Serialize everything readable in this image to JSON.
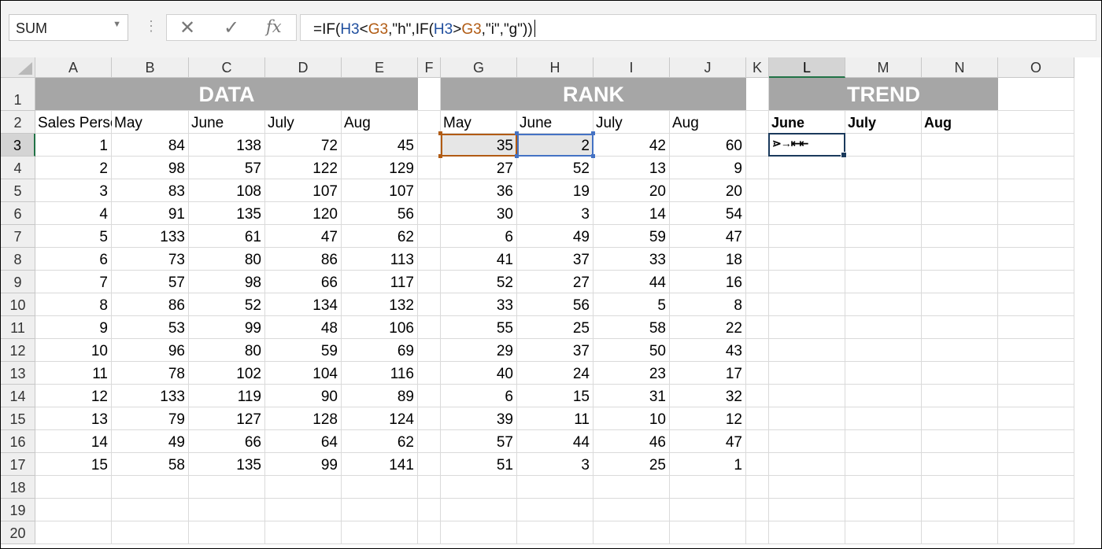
{
  "name_box": {
    "value": "SUM",
    "dropdown_icon": "chevron-down-icon"
  },
  "formula_buttons": {
    "cancel": "✕",
    "enter": "✓",
    "insert_function": "fx"
  },
  "formula_bar": {
    "parts": [
      "=IF(",
      "H3",
      "<",
      "G3",
      ",\"h\",IF(",
      "H3",
      ">",
      "G3",
      ",\"i\",\"g\"))"
    ]
  },
  "columns": [
    "A",
    "B",
    "C",
    "D",
    "E",
    "F",
    "G",
    "H",
    "I",
    "J",
    "K",
    "L",
    "M",
    "N",
    "O"
  ],
  "rows": [
    "1",
    "2",
    "3",
    "4",
    "5",
    "6",
    "7",
    "8",
    "9",
    "10",
    "11",
    "12",
    "13",
    "14",
    "15",
    "16",
    "17",
    "18",
    "19",
    "20"
  ],
  "selected_column": "L",
  "selected_row": "3",
  "bands": {
    "data": "DATA",
    "rank": "RANK",
    "trend": "TREND"
  },
  "data_headers": [
    "Sales Person",
    "May",
    "June",
    "July",
    "Aug"
  ],
  "data_rows": [
    [
      1,
      84,
      138,
      72,
      45
    ],
    [
      2,
      98,
      57,
      122,
      129
    ],
    [
      3,
      83,
      108,
      107,
      107
    ],
    [
      4,
      91,
      135,
      120,
      56
    ],
    [
      5,
      133,
      61,
      47,
      62
    ],
    [
      6,
      73,
      80,
      86,
      113
    ],
    [
      7,
      57,
      98,
      66,
      117
    ],
    [
      8,
      86,
      52,
      134,
      132
    ],
    [
      9,
      53,
      99,
      48,
      106
    ],
    [
      10,
      96,
      80,
      59,
      69
    ],
    [
      11,
      78,
      102,
      104,
      116
    ],
    [
      12,
      133,
      119,
      90,
      89
    ],
    [
      13,
      79,
      127,
      128,
      124
    ],
    [
      14,
      49,
      66,
      64,
      62
    ],
    [
      15,
      58,
      135,
      99,
      141
    ]
  ],
  "rank_headers": [
    "May",
    "June",
    "July",
    "Aug"
  ],
  "rank_rows": [
    [
      35,
      2,
      42,
      60
    ],
    [
      27,
      52,
      13,
      9
    ],
    [
      36,
      19,
      20,
      20
    ],
    [
      30,
      3,
      14,
      54
    ],
    [
      6,
      49,
      59,
      47
    ],
    [
      41,
      37,
      33,
      18
    ],
    [
      52,
      27,
      44,
      16
    ],
    [
      33,
      56,
      5,
      8
    ],
    [
      55,
      25,
      58,
      22
    ],
    [
      29,
      37,
      50,
      43
    ],
    [
      40,
      24,
      23,
      17
    ],
    [
      6,
      15,
      31,
      32
    ],
    [
      39,
      11,
      10,
      12
    ],
    [
      57,
      44,
      46,
      47
    ],
    [
      51,
      3,
      25,
      1
    ]
  ],
  "trend_headers": [
    "June",
    "July",
    "Aug"
  ],
  "active_cell_display": "⋗→⇤⇤",
  "colors": {
    "band": "#a6a6a6",
    "ref_h3": "#1f4e9e",
    "ref_g3": "#b15b13",
    "selection": "#217346"
  }
}
